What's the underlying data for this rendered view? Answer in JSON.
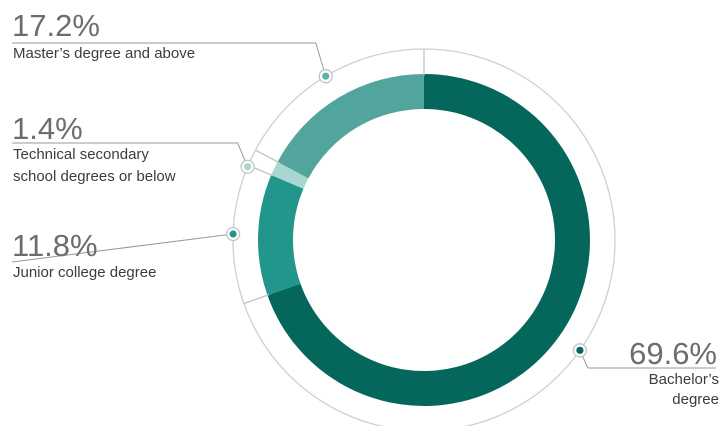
{
  "chart_data": {
    "type": "pie",
    "style": "donut",
    "start": "top",
    "direction": "clockwise",
    "slices": [
      {
        "label": "Bachelor’s degree",
        "label_lines": [
          "Bachelor’s",
          "degree"
        ],
        "value": 69.6,
        "display": "69.6%",
        "color": "#05665c",
        "marker_color": "#05665c"
      },
      {
        "label": "Junior college degree",
        "label_lines": [
          "Junior college degree"
        ],
        "value": 11.8,
        "display": "11.8%",
        "color": "#21978b",
        "marker_color": "#21978b"
      },
      {
        "label": "Technical secondary school degrees or below",
        "label_lines": [
          "Technical secondary",
          "school degrees or below"
        ],
        "value": 1.4,
        "display": "1.4%",
        "color": "#a8d6d0",
        "marker_color": "#a8d6d0"
      },
      {
        "label": "Master’s degree and above",
        "label_lines": [
          "Master’s degree and above"
        ],
        "value": 17.2,
        "display": "17.2%",
        "color": "#51a59d",
        "marker_color": "#5eb3a9"
      }
    ]
  }
}
